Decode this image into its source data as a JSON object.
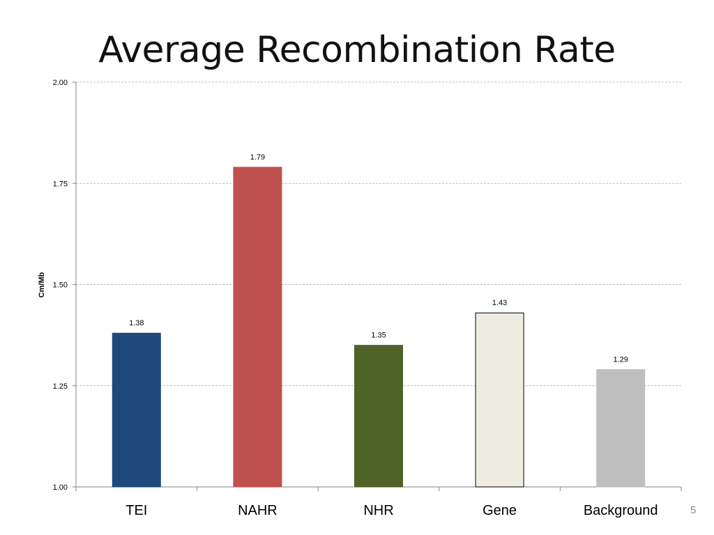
{
  "slide": {
    "title": "Average Recombination Rate",
    "page_number": "5"
  },
  "chart_data": {
    "type": "bar",
    "title": "",
    "xlabel": "",
    "ylabel": "Cm/Mb",
    "ylim": [
      1.0,
      2.0
    ],
    "yticks": [
      1.0,
      1.25,
      1.5,
      1.75,
      2.0
    ],
    "ytick_labels": [
      "1.00",
      "1.25",
      "1.50",
      "1.75",
      "2.00"
    ],
    "grid": true,
    "legend": "none",
    "categories": [
      "TEI",
      "NAHR",
      "NHR",
      "Gene",
      "Background"
    ],
    "values": [
      1.38,
      1.79,
      1.35,
      1.43,
      1.29
    ],
    "value_labels": [
      "1.38",
      "1.79",
      "1.35",
      "1.43",
      "1.29"
    ],
    "colors": [
      "#1f497d",
      "#c0504d",
      "#4f6228",
      "#eeece1",
      "#bfbfbf"
    ],
    "edge_colors": [
      "#1f497d",
      "#c0504d",
      "#4f6228",
      "#000000",
      "#bfbfbf"
    ]
  }
}
